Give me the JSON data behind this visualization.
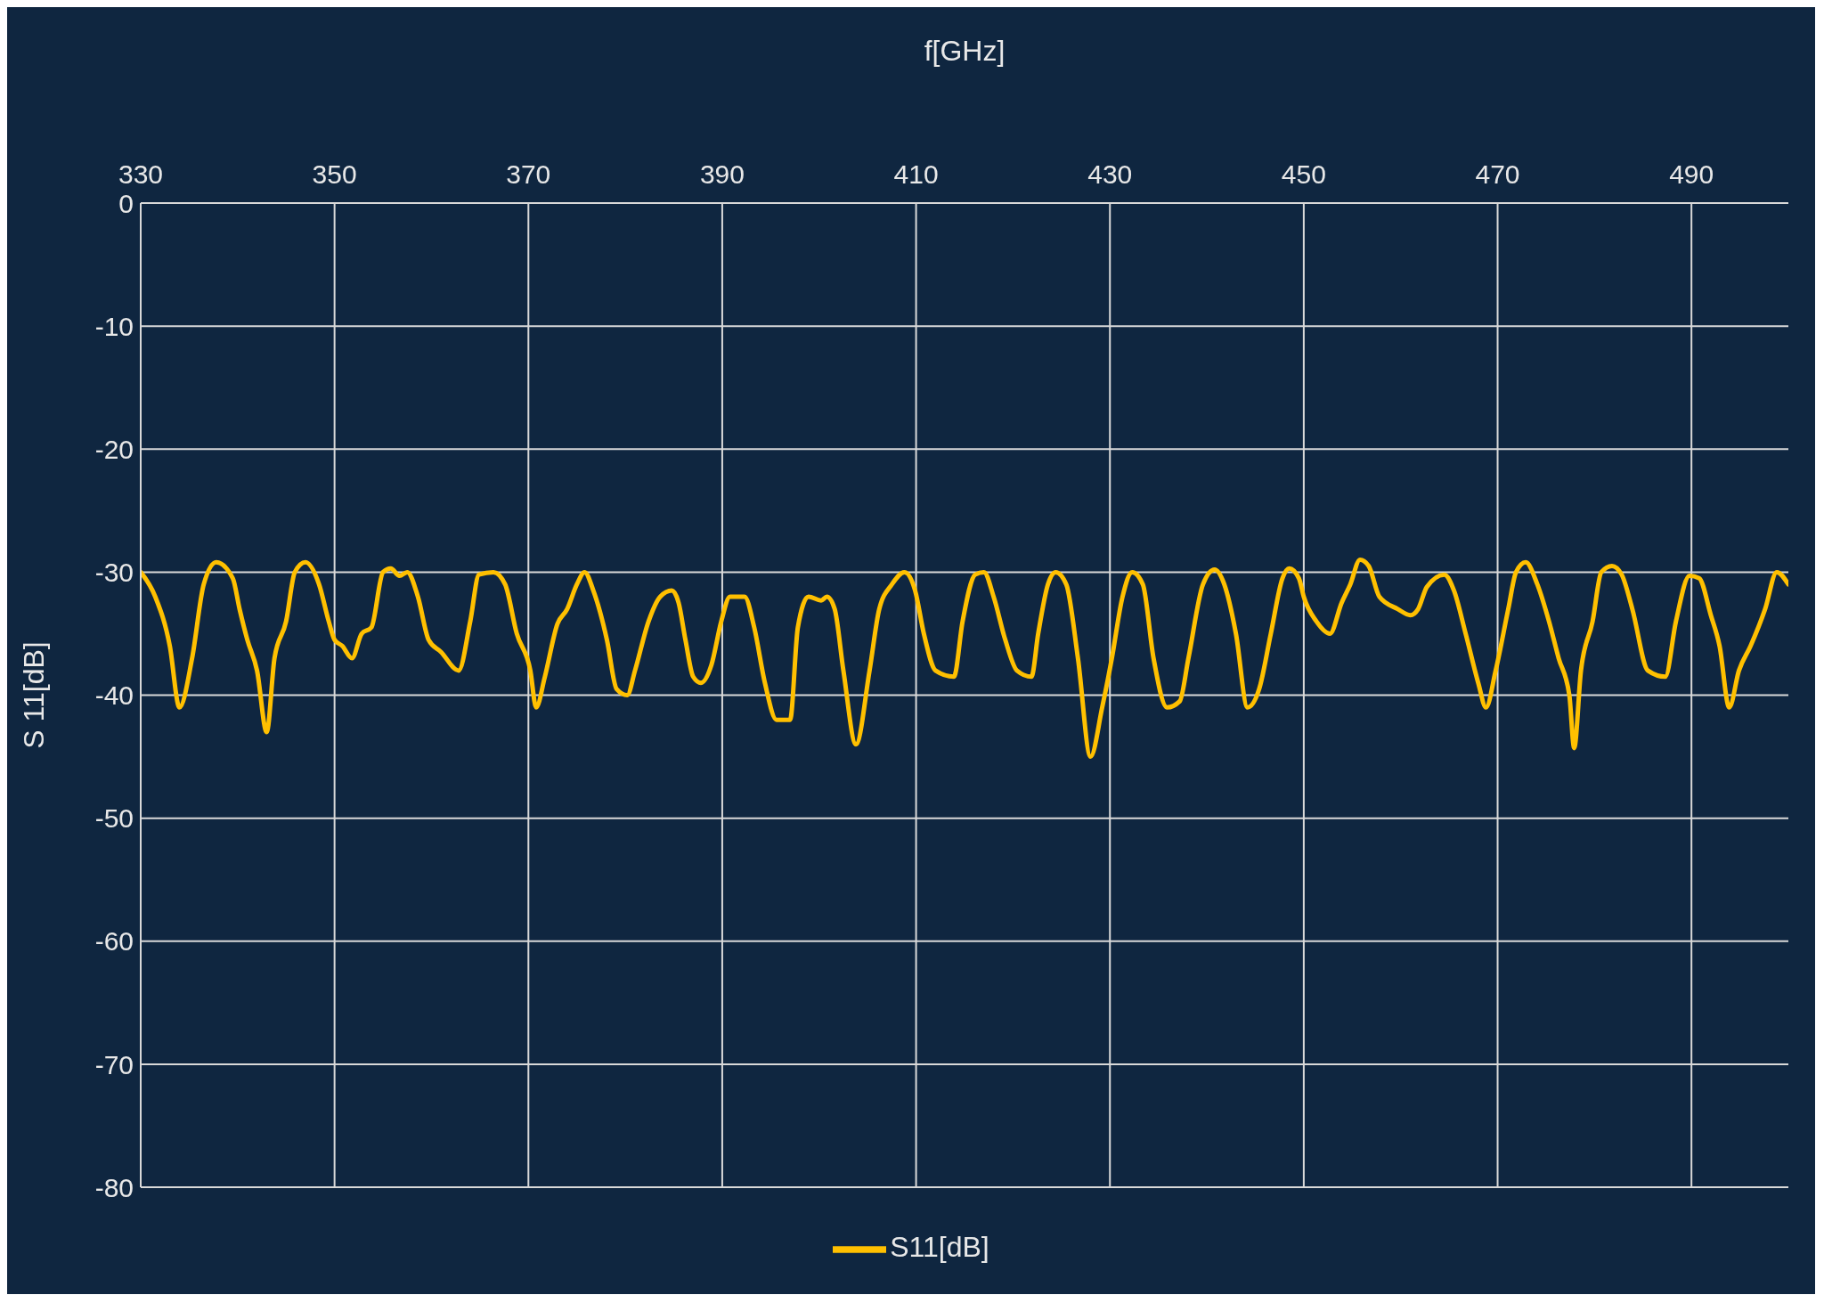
{
  "chart_data": {
    "type": "line",
    "xlabel": "f[GHz]",
    "ylabel": "S 11[dB]",
    "xlim": [
      330,
      500
    ],
    "xticks": [
      330,
      350,
      370,
      390,
      410,
      430,
      450,
      470,
      490
    ],
    "ylim": [
      -80,
      0
    ],
    "yticks": [
      0,
      -10,
      -20,
      -30,
      -40,
      -50,
      -60,
      -70,
      -80
    ],
    "grid": true,
    "legend": "bottom",
    "marker": "none",
    "line_style": "solid",
    "x": [
      330,
      331.5,
      333,
      334,
      335.3,
      336.5,
      337.8,
      339.5,
      340.2,
      341,
      342,
      343,
      343.8,
      345,
      345.9,
      347,
      348.4,
      349.4,
      350,
      350.8,
      351.8,
      352.8,
      353.8,
      355,
      355.8,
      356.7,
      357.5,
      358.6,
      359.7,
      361,
      362.8,
      364,
      364.9,
      366.4,
      367.6,
      368.8,
      370.2,
      370.8,
      371.7,
      373,
      374,
      375,
      375.8,
      376.7,
      378.1,
      379.1,
      380.2,
      381,
      382.4,
      383.6,
      384.8,
      385.5,
      386.2,
      387,
      387.8,
      388.9,
      389.9,
      390.8,
      392.3,
      393.3,
      394.4,
      395.6,
      397,
      397.8,
      398.9,
      400.2,
      400.8,
      401.6,
      402.5,
      403.8,
      405.2,
      406.2,
      407.5,
      408.8,
      409.9,
      410.8,
      412,
      413.9,
      414.8,
      416.1,
      417,
      418,
      419.2,
      420.4,
      421.9,
      422.6,
      423.6,
      424.4,
      425.5,
      426.7,
      428,
      429.2,
      430.2,
      431.3,
      432.3,
      433.4,
      434.5,
      435.9,
      437.2,
      438.1,
      439.6,
      440.8,
      441.8,
      443,
      444.2,
      445.4,
      446.6,
      447.8,
      448.5,
      449.5,
      450,
      451.3,
      452.7,
      453.9,
      454.8,
      455.8,
      456.7,
      457.8,
      459.7,
      461,
      461.8,
      462.7,
      464.5,
      465.5,
      466.7,
      468,
      468.8,
      469.8,
      471.1,
      471.9,
      472.9,
      474.1,
      475.3,
      476.3,
      477.4,
      477.9,
      478.6,
      479.8,
      480.7,
      481.8,
      482.8,
      483.9,
      485.5,
      487.3,
      488.4,
      489.8,
      490.8,
      492,
      492.9,
      493.9,
      494.9,
      496.1,
      497.6,
      498.8,
      500
    ],
    "series": [
      {
        "name": "S11[dB]",
        "color": "#ffc000",
        "values": [
          -30,
          -32,
          -36,
          -41,
          -37,
          -31,
          -29.2,
          -30.5,
          -33,
          -35.5,
          -38,
          -43,
          -37,
          -34,
          -30,
          -29.2,
          -31,
          -34,
          -35.5,
          -36,
          -37,
          -35,
          -34.5,
          -30,
          -29.7,
          -30.3,
          -30,
          -32,
          -35.5,
          -36.5,
          -38,
          -34,
          -30.2,
          -30,
          -31,
          -35,
          -38,
          -41,
          -38.5,
          -34.2,
          -33,
          -31,
          -30,
          -31.5,
          -35.5,
          -39.5,
          -40,
          -38,
          -34,
          -32,
          -31.5,
          -32.5,
          -35.5,
          -38.5,
          -39,
          -37.5,
          -34,
          -32,
          -32,
          -34.5,
          -39,
          -42,
          -42,
          -34.5,
          -32,
          -32.3,
          -32,
          -33,
          -38,
          -44,
          -38,
          -33,
          -31,
          -30,
          -31.5,
          -35,
          -38,
          -38.5,
          -34,
          -30.2,
          -30,
          -32,
          -35.5,
          -38,
          -38.5,
          -35,
          -31,
          -30,
          -31,
          -37,
          -45,
          -41,
          -37,
          -32,
          -30,
          -31,
          -37,
          -41,
          -40.5,
          -37,
          -31,
          -29.8,
          -31,
          -35,
          -41,
          -39.5,
          -35,
          -30.5,
          -29.7,
          -30.5,
          -32,
          -34,
          -35,
          -32.5,
          -31,
          -29,
          -29.5,
          -32,
          -33,
          -33.5,
          -33,
          -31.2,
          -30.2,
          -31.5,
          -35,
          -39,
          -41,
          -38,
          -33,
          -30,
          -29.2,
          -31,
          -34,
          -37,
          -40,
          -44.3,
          -38,
          -34,
          -30,
          -29.5,
          -30.2,
          -33,
          -38,
          -38.5,
          -34,
          -30.3,
          -30.5,
          -33.5,
          -36,
          -41,
          -38,
          -36,
          -33,
          -30,
          -31
        ]
      }
    ]
  }
}
